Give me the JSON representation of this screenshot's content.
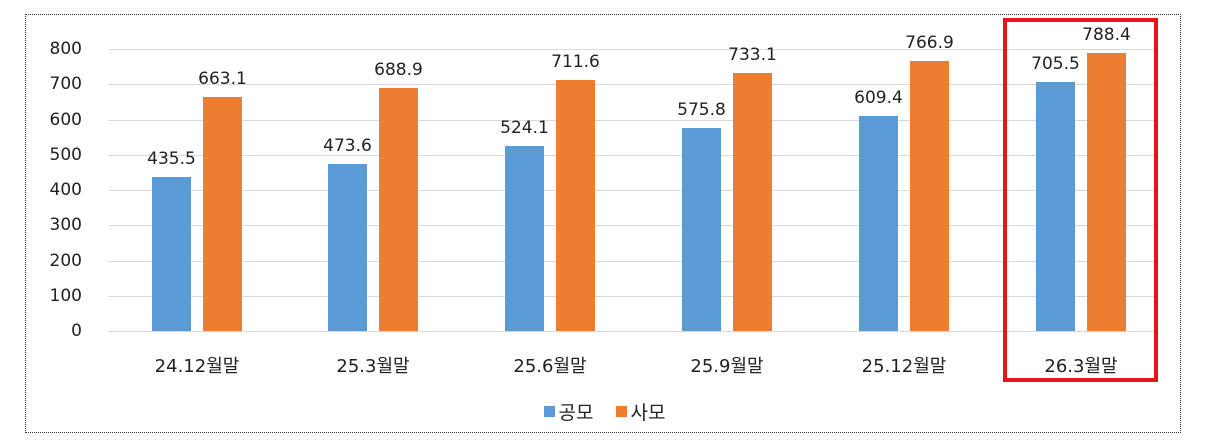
{
  "chart_data": {
    "type": "bar",
    "title": "",
    "xlabel": "",
    "ylabel": "",
    "ylim": [
      0,
      800
    ],
    "yticks": [
      0,
      100,
      200,
      300,
      400,
      500,
      600,
      700,
      800
    ],
    "grid": true,
    "legend_position": "bottom",
    "categories": [
      "24.12월말",
      "25.3월말",
      "25.6월말",
      "25.9월말",
      "25.12월말",
      "26.3월말"
    ],
    "series": [
      {
        "name": "공모",
        "color": "#5b9bd5",
        "values": [
          435.5,
          473.6,
          524.1,
          575.8,
          609.4,
          705.5
        ]
      },
      {
        "name": "사모",
        "color": "#ed7d31",
        "values": [
          663.1,
          688.9,
          711.6,
          733.1,
          766.9,
          788.4
        ]
      }
    ],
    "annotations": [
      {
        "type": "highlight-box",
        "category": "26.3월말",
        "color": "#e8141a"
      }
    ]
  },
  "labels": {
    "yticks": [
      "0",
      "100",
      "200",
      "300",
      "400",
      "500",
      "600",
      "700",
      "800"
    ],
    "categories": [
      "24.12월말",
      "25.3월말",
      "25.6월말",
      "25.9월말",
      "25.12월말",
      "26.3월말"
    ],
    "s1": [
      "435.5",
      "473.6",
      "524.1",
      "575.8",
      "609.4",
      "705.5"
    ],
    "s2": [
      "663.1",
      "688.9",
      "711.6",
      "733.1",
      "766.9",
      "788.4"
    ],
    "legend": [
      "공모",
      "사모"
    ]
  }
}
